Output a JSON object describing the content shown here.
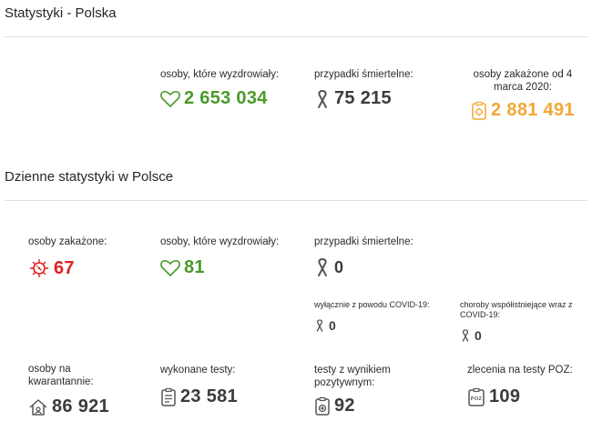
{
  "section1": {
    "title": "Statystyki - Polska",
    "recovered": {
      "label": "osoby, które wyzdrowiały:",
      "value": "2 653 034"
    },
    "deaths": {
      "label": "przypadki śmiertelne:",
      "value": "75 215"
    },
    "infected": {
      "label": "osoby zakażone od 4 marca 2020:",
      "value": "2 881 491"
    }
  },
  "section2": {
    "title": "Dzienne statystyki w Polsce",
    "infected": {
      "label": "osoby zakażone:",
      "value": "67"
    },
    "recovered": {
      "label": "osoby, które wyzdrowiały:",
      "value": "81"
    },
    "deaths": {
      "label": "przypadki śmiertelne:",
      "value": "0"
    },
    "deaths_covid_only": {
      "label": "wyłącznie z powodu COVID-19:",
      "value": "0"
    },
    "deaths_comorbid": {
      "label": "choroby współistniejące wraz z COVID-19:",
      "value": "0"
    },
    "quarantine": {
      "label": "osoby na kwarantannie:",
      "value": "86 921"
    },
    "tests": {
      "label": "wykonane testy:",
      "value": "23 581"
    },
    "positive_tests": {
      "label": "testy z wynikiem pozytywnym:",
      "value": "92"
    },
    "poz_orders": {
      "label": "zlecenia na testy POZ:",
      "value": "109"
    }
  },
  "colors": {
    "green": "#4a9a2b",
    "orange": "#f2a736",
    "red": "#e02020",
    "dark": "#3b3b3b",
    "rule": "#dddddd"
  },
  "icons": {
    "recovered": "heart-icon",
    "deaths": "ribbon-icon",
    "infected_total": "clipboard-virus-icon",
    "infected_daily": "virus-icon",
    "quarantine": "house-icon",
    "tests": "clipboard-list-icon",
    "positive_tests": "clipboard-plus-icon",
    "poz_orders": "poz-clipboard-icon"
  }
}
